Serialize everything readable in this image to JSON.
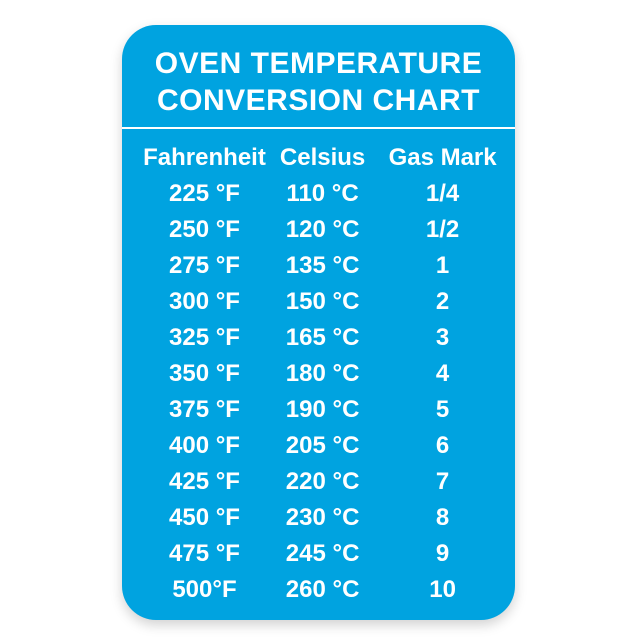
{
  "page": {
    "background": "#FFFFFF"
  },
  "card": {
    "background": "#00A3E0",
    "text_color": "#FFFFFF",
    "title_line1": "OVEN TEMPERATURE",
    "title_line2": "CONVERSION CHART"
  },
  "chart_data": {
    "type": "table",
    "title": "OVEN TEMPERATURE CONVERSION CHART",
    "columns": [
      "Fahrenheit",
      "Celsius",
      "Gas Mark"
    ],
    "rows": [
      [
        "225 °F",
        "110 °C",
        "1/4"
      ],
      [
        "250 °F",
        "120 °C",
        "1/2"
      ],
      [
        "275 °F",
        "135 °C",
        "1"
      ],
      [
        "300 °F",
        "150 °C",
        "2"
      ],
      [
        "325 °F",
        "165 °C",
        "3"
      ],
      [
        "350 °F",
        "180 °C",
        "4"
      ],
      [
        "375 °F",
        "190 °C",
        "5"
      ],
      [
        "400 °F",
        "205 °C",
        "6"
      ],
      [
        "425 °F",
        "220 °C",
        "7"
      ],
      [
        "450 °F",
        "230 °C",
        "8"
      ],
      [
        "475 °F",
        "245 °C",
        "9"
      ],
      [
        "500°F",
        "260 °C",
        "10"
      ]
    ],
    "layout": {
      "grid": false,
      "header_separator": true,
      "text_alignment": "center"
    }
  }
}
